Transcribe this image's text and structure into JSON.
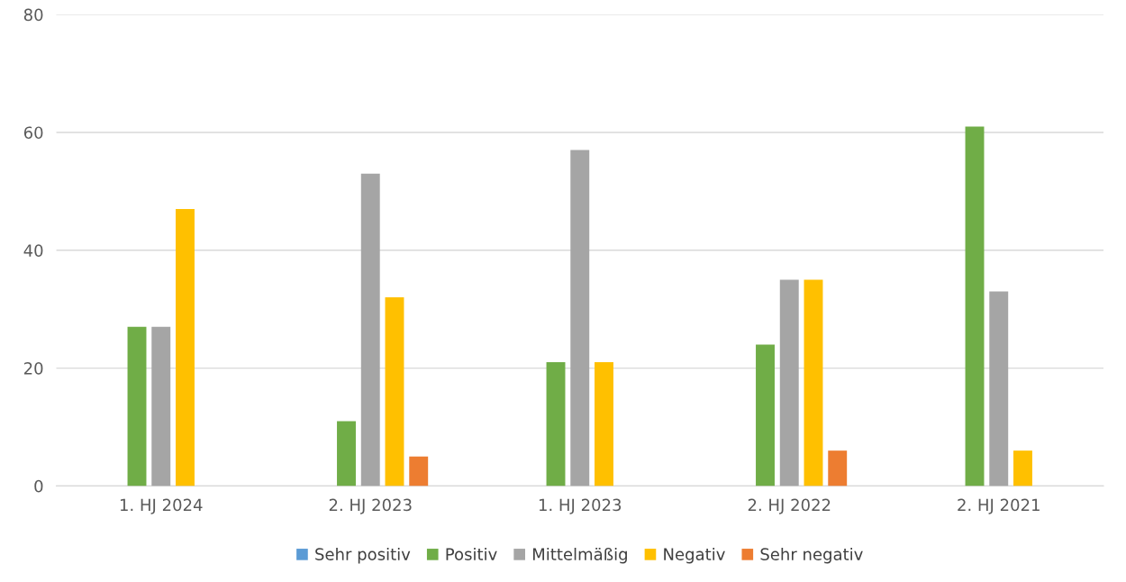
{
  "chart_data": {
    "type": "bar",
    "categories": [
      "1. HJ 2024",
      "2. HJ 2023",
      "1. HJ 2023",
      "2. HJ 2022",
      "2. HJ 2021"
    ],
    "series": [
      {
        "name": "Sehr positiv",
        "color": "#5b9bd5",
        "values": [
          0,
          0,
          0,
          0,
          0
        ]
      },
      {
        "name": "Positiv",
        "color": "#70ad47",
        "values": [
          27,
          11,
          21,
          24,
          61
        ]
      },
      {
        "name": "Mittelmäßig",
        "color": "#a5a5a5",
        "values": [
          27,
          53,
          57,
          35,
          33
        ]
      },
      {
        "name": "Negativ",
        "color": "#ffc000",
        "values": [
          47,
          32,
          21,
          35,
          6
        ]
      },
      {
        "name": "Sehr negativ",
        "color": "#ed7d31",
        "values": [
          0,
          5,
          0,
          6,
          0
        ]
      }
    ],
    "ylim": [
      0,
      80
    ],
    "yticks": [
      0,
      20,
      40,
      60,
      80
    ],
    "grid": "y",
    "legend": "bottom"
  }
}
